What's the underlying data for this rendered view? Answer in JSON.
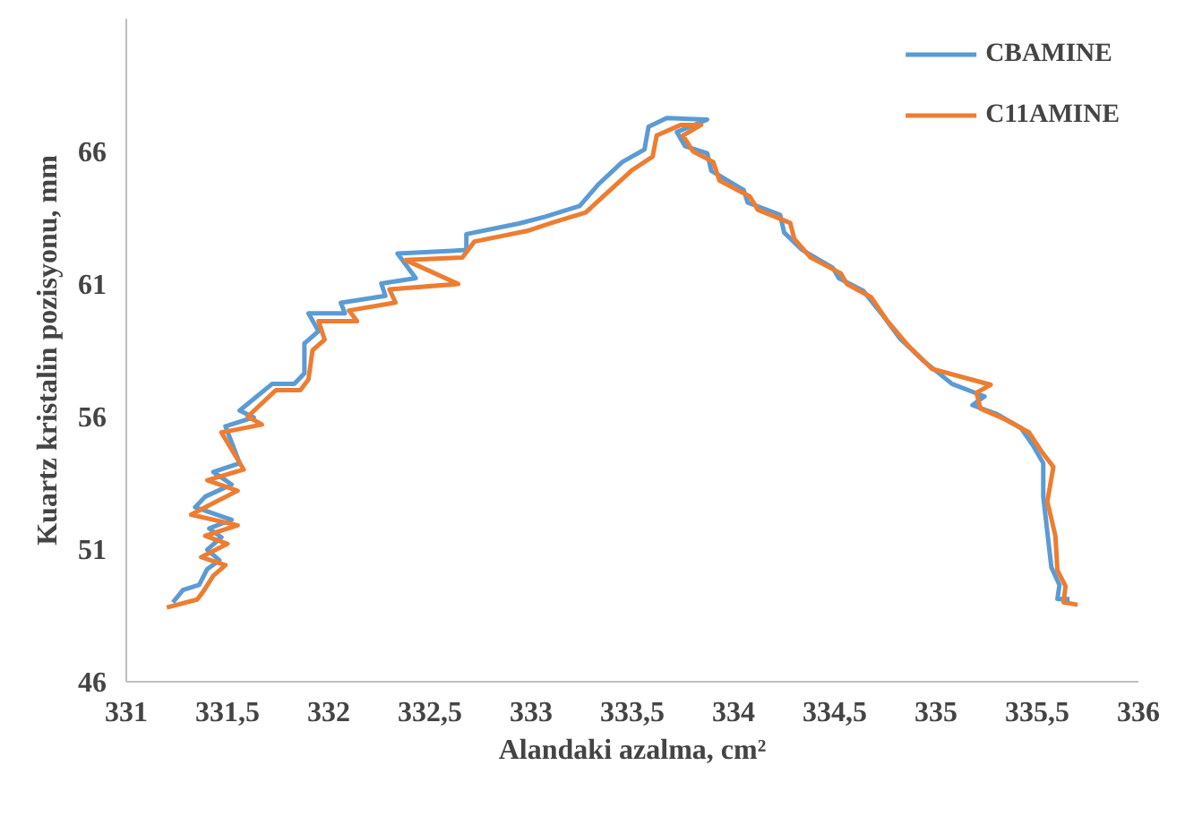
{
  "chart_data": {
    "type": "line",
    "xlabel": "Alandaki azalma, cm²",
    "ylabel": "Kuartz kristalin pozisyonu, mm",
    "xlim": [
      331,
      336
    ],
    "xticks": [
      331,
      {
        "value": 331.5,
        "label": "331,5"
      },
      332,
      {
        "value": 332.5,
        "label": "332,5"
      },
      333,
      {
        "value": 333.5,
        "label": "333,5"
      },
      334,
      {
        "value": 334.5,
        "label": "334,5"
      },
      335,
      {
        "value": 335.5,
        "label": "335,5"
      },
      336
    ],
    "ylim": [
      46,
      71
    ],
    "yticks": [
      46,
      51,
      56,
      61,
      66
    ],
    "grid": false,
    "legend": "top right",
    "marker": "none",
    "line_style": "solid",
    "series": [
      {
        "name": "CBAMINE",
        "color": "#5b9bd5",
        "x": [
          331.23,
          331.28,
          331.36,
          331.4,
          331.46,
          331.4,
          331.47,
          331.41,
          331.52,
          331.34,
          331.39,
          331.52,
          331.43,
          331.56,
          331.49,
          331.63,
          331.56,
          331.72,
          331.83,
          331.88,
          331.88,
          331.95,
          331.9,
          332.08,
          332.06,
          332.28,
          332.26,
          332.43,
          332.34,
          332.68,
          332.68,
          332.94,
          333.07,
          333.24,
          333.33,
          333.45,
          333.56,
          333.58,
          333.67,
          333.87,
          333.72,
          333.76,
          333.87,
          333.89,
          334.05,
          334.07,
          334.23,
          334.25,
          334.34,
          334.49,
          334.52,
          334.64,
          334.73,
          334.82,
          334.94,
          335.08,
          335.24,
          335.18,
          335.3,
          335.42,
          335.48,
          335.53,
          335.53,
          335.55,
          335.57,
          335.61,
          335.6,
          335.66
        ],
        "values": [
          48.99,
          49.46,
          49.65,
          50.25,
          50.58,
          50.98,
          51.45,
          51.78,
          52.11,
          52.58,
          52.98,
          53.44,
          53.91,
          54.24,
          55.63,
          55.97,
          56.23,
          57.23,
          57.23,
          57.63,
          58.76,
          59.22,
          59.89,
          59.89,
          60.29,
          60.55,
          61.02,
          61.22,
          62.15,
          62.28,
          62.88,
          63.28,
          63.54,
          63.94,
          64.74,
          65.6,
          66.07,
          66.93,
          67.26,
          67.2,
          66.73,
          66.2,
          65.93,
          65.27,
          64.54,
          64.07,
          63.61,
          62.94,
          62.28,
          61.61,
          61.22,
          60.75,
          59.89,
          58.96,
          58.09,
          57.23,
          56.76,
          56.43,
          56.1,
          55.57,
          54.9,
          54.24,
          52.98,
          51.65,
          50.32,
          49.65,
          49.12,
          49.12
        ]
      },
      {
        "name": "C11AMINE",
        "color": "#ed7d31",
        "x": [
          331.2,
          331.35,
          331.38,
          331.43,
          331.49,
          331.37,
          331.5,
          331.39,
          331.55,
          331.32,
          331.42,
          331.55,
          331.4,
          331.58,
          331.47,
          331.67,
          331.6,
          331.74,
          331.86,
          331.9,
          331.92,
          331.98,
          331.95,
          332.14,
          332.1,
          332.33,
          332.3,
          332.64,
          332.38,
          332.66,
          332.72,
          332.98,
          333.1,
          333.27,
          333.37,
          333.5,
          333.6,
          333.62,
          333.74,
          333.84,
          333.75,
          333.8,
          333.9,
          333.93,
          334.08,
          334.12,
          334.28,
          334.3,
          334.38,
          334.53,
          334.56,
          334.68,
          334.76,
          334.86,
          334.98,
          335.27,
          335.2,
          335.22,
          335.34,
          335.46,
          335.52,
          335.58,
          335.55,
          335.59,
          335.6,
          335.64,
          335.63,
          335.7
        ],
        "values": [
          48.8,
          49.1,
          49.4,
          50.0,
          50.4,
          50.7,
          51.2,
          51.5,
          51.9,
          52.3,
          52.7,
          53.2,
          53.6,
          54.0,
          55.4,
          55.7,
          56.0,
          57.0,
          57.0,
          57.4,
          58.5,
          58.9,
          59.6,
          59.6,
          60.0,
          60.3,
          60.8,
          61.0,
          61.9,
          62.0,
          62.6,
          63.0,
          63.3,
          63.7,
          64.4,
          65.3,
          65.8,
          66.6,
          67.0,
          67.0,
          66.6,
          66.0,
          65.6,
          64.9,
          64.3,
          63.8,
          63.3,
          62.7,
          62.0,
          61.4,
          61.0,
          60.5,
          59.6,
          58.7,
          57.8,
          57.2,
          56.9,
          56.3,
          55.9,
          55.4,
          54.7,
          54.1,
          52.8,
          51.5,
          50.2,
          49.6,
          49.0,
          48.9
        ]
      }
    ]
  }
}
